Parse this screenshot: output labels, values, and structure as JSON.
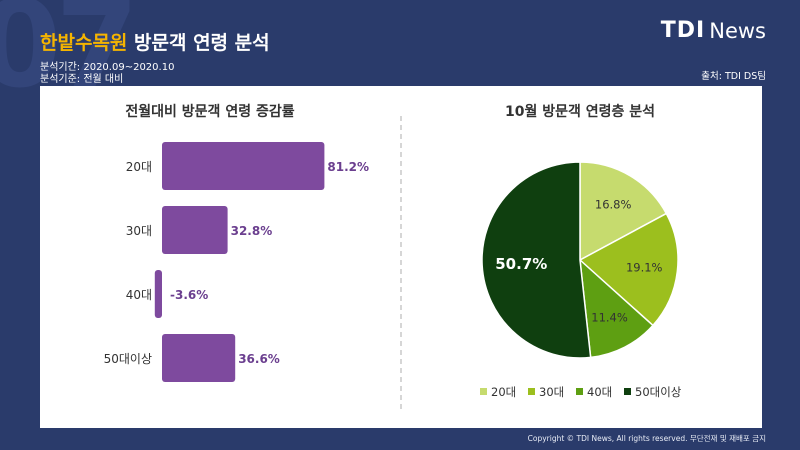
{
  "header": {
    "bg_number": "07",
    "title_accent": "한밭수목원",
    "title_rest": " 방문객 연령 분석",
    "period": "분석기간: 2020.09~2020.10",
    "basis": "분석기준: 전월 대비",
    "logo_mark": "TDI",
    "logo_text": "News",
    "source": "출처: TDI DS팀"
  },
  "footer": {
    "copyright": "Copyright © TDI News, All rights reserved. 무단전재 및 재배포 금지"
  },
  "colors": {
    "background": "#2a3b6b",
    "bar": "#7e4a9e",
    "bar_label": "#6b3f8f",
    "accent": "#f5b400",
    "pie": [
      "#c6db6e",
      "#9cbf1e",
      "#5e9f12",
      "#0f3f0f"
    ]
  },
  "chart_data": [
    {
      "type": "bar",
      "orientation": "horizontal",
      "title": "전월대비 방문객 연령 증감률",
      "categories": [
        "20대",
        "30대",
        "40대",
        "50대이상"
      ],
      "values": [
        81.2,
        32.8,
        -3.6,
        36.6
      ],
      "value_labels": [
        "81.2%",
        "32.8%",
        "-3.6%",
        "36.6%"
      ],
      "unit": "%",
      "xlim": [
        -5,
        90
      ],
      "grid": false
    },
    {
      "type": "pie",
      "title": "10월 방문객 연령층 분석",
      "categories": [
        "20대",
        "30대",
        "40대",
        "50대이상"
      ],
      "values": [
        16.8,
        19.1,
        11.4,
        50.7
      ],
      "value_labels": [
        "16.8%",
        "19.1%",
        "11.4%",
        "50.7%"
      ],
      "unit": "%",
      "legend_position": "bottom"
    }
  ]
}
